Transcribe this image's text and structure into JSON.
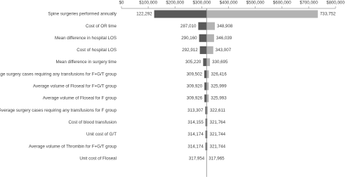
{
  "chart_data": {
    "type": "tornado",
    "categories": [
      "Spine surgeries performed annually",
      "Cost of OR time",
      "Mean difference in hospital LOS",
      "Cost of hospital LOS",
      "Mean difference in surgery time",
      "Average surgery cases requiring any transfusions for F+G/T group",
      "Average volume of Floseal for F+G/T group",
      "Average volume of Floseal for F group",
      "Average surgery cases requiring any transfusions for F group",
      "Cost of blood transfusion",
      "Unit cost of G/T",
      "Average volume of Thrombin for F+G/T group",
      "Unit cost of Floseal"
    ],
    "base": 317960,
    "low": {
      "color": "#595959",
      "values": [
        122292,
        287010,
        290160,
        292912,
        305220,
        309502,
        309920,
        309926,
        313307,
        314155,
        314174,
        314174,
        317954
      ],
      "value_labels": [
        "122,292",
        "287,010",
        "290,160",
        "292,912",
        "305,220",
        "309,502",
        "309,920",
        "309,926",
        "313,307",
        "314,155",
        "314,174",
        "314,174",
        "317,954"
      ]
    },
    "high": {
      "color": "#b3b3b3",
      "values": [
        733752,
        348908,
        346039,
        343007,
        330695,
        326416,
        325999,
        325993,
        322611,
        321764,
        321744,
        321744,
        317965
      ],
      "value_labels": [
        "733,752",
        "348,908",
        "346,039",
        "343,007",
        "330,695",
        "326,416",
        "325,999",
        "325,993",
        "322,611",
        "321,764",
        "321,744",
        "321,744",
        "317,965"
      ]
    },
    "xlim": [
      0,
      800000
    ],
    "xticks": [
      {
        "value": 0,
        "label": "$0"
      },
      {
        "value": 100000,
        "label": "$100,000"
      },
      {
        "value": 200000,
        "label": "$200,000"
      },
      {
        "value": 300000,
        "label": "$300,000"
      },
      {
        "value": 400000,
        "label": "$400,000"
      },
      {
        "value": 500000,
        "label": "$500,000"
      },
      {
        "value": 600000,
        "label": "$600,000"
      },
      {
        "value": 700000,
        "label": "$700,000"
      },
      {
        "value": 800000,
        "label": "$800,000"
      }
    ]
  }
}
